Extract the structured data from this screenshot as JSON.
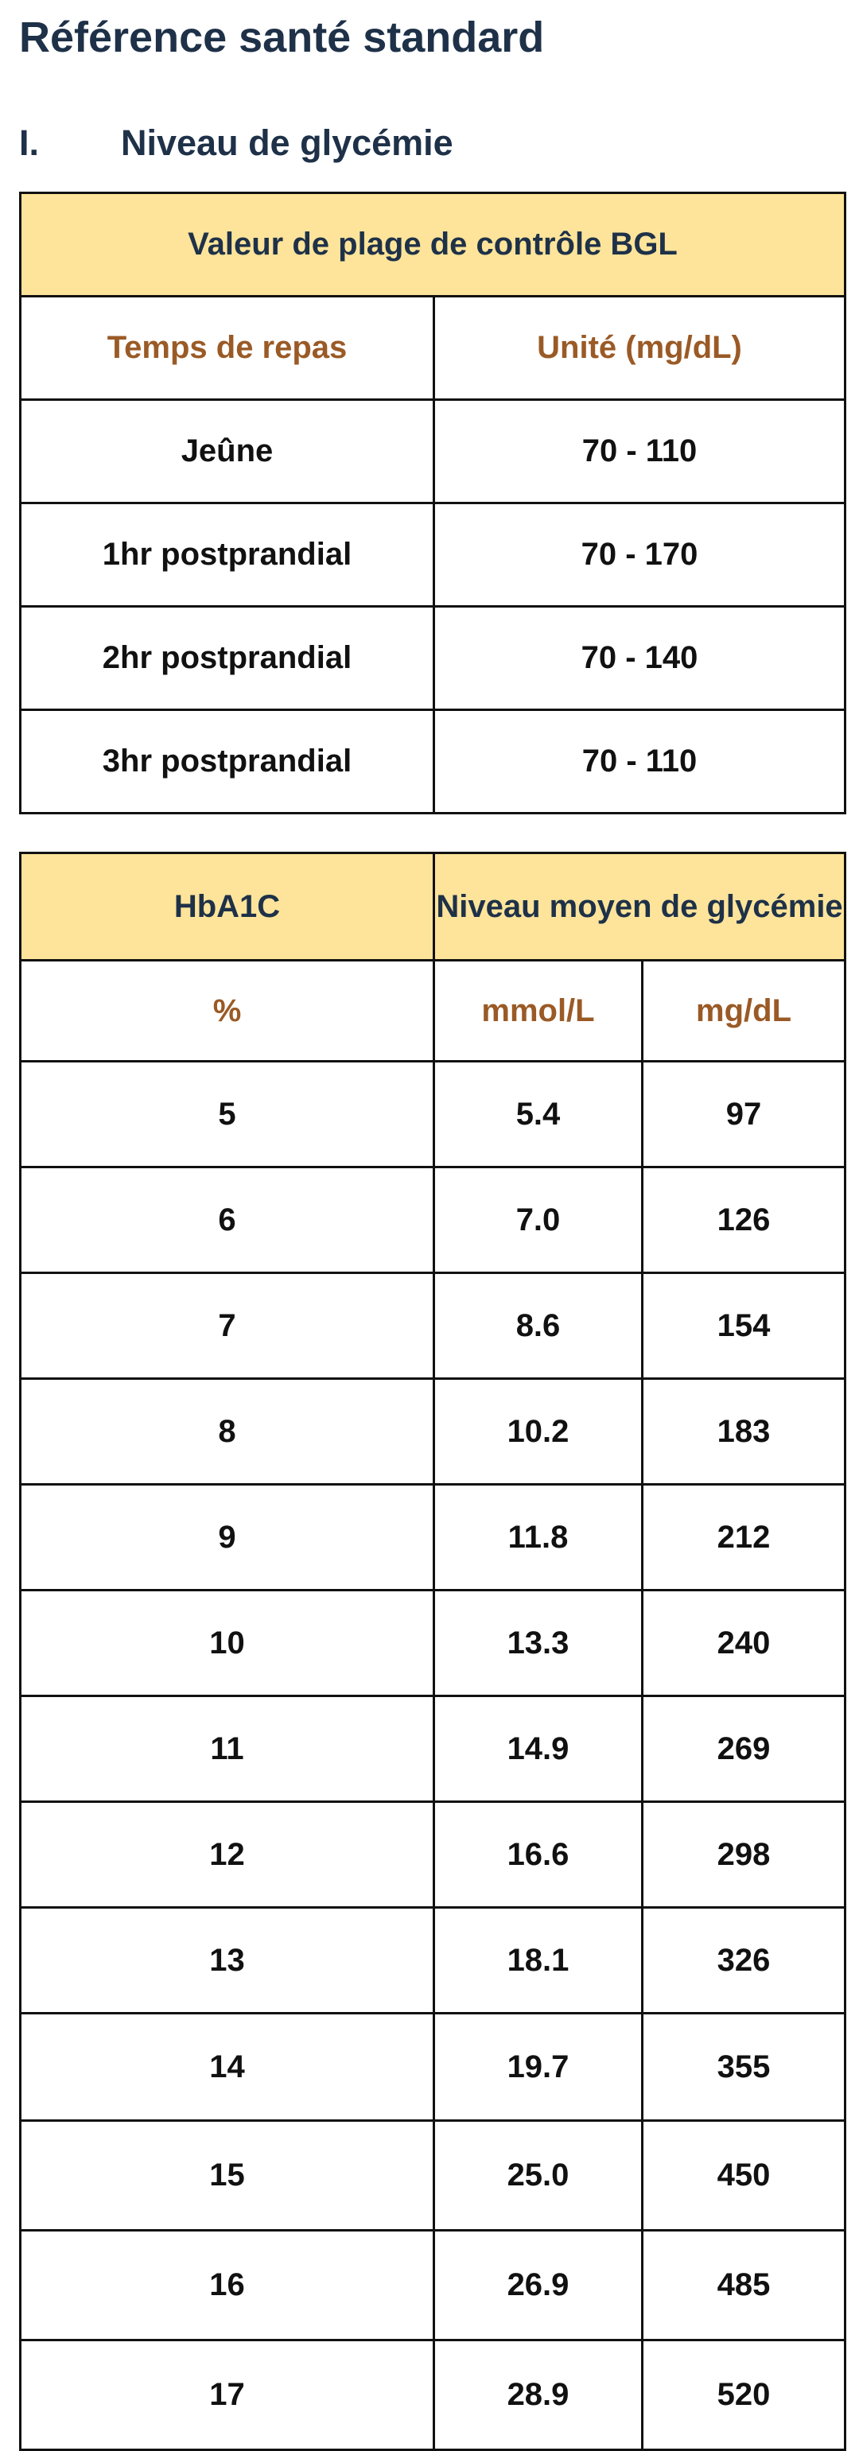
{
  "title": "Référence santé standard",
  "section": {
    "number": "I.",
    "title": "Niveau de glycémie"
  },
  "bgl_table": {
    "caption": "Valeur de plage de contrôle BGL",
    "headers": [
      "Temps de repas",
      "Unité (mg/dL)"
    ],
    "rows": [
      [
        "Jeûne",
        "70 - 110"
      ],
      [
        "1hr postprandial",
        "70 - 170"
      ],
      [
        "2hr postprandial",
        "70 - 140"
      ],
      [
        "3hr postprandial",
        "70 - 110"
      ]
    ]
  },
  "hba1c_table": {
    "header_left": "HbA1C",
    "header_right": "Niveau moyen de glycémie",
    "units": [
      "%",
      "mmol/L",
      "mg/dL"
    ],
    "rows": [
      [
        "5",
        "5.4",
        "97"
      ],
      [
        "6",
        "7.0",
        "126"
      ],
      [
        "7",
        "8.6",
        "154"
      ],
      [
        "8",
        "10.2",
        "183"
      ],
      [
        "9",
        "11.8",
        "212"
      ],
      [
        "10",
        "13.3",
        "240"
      ],
      [
        "11",
        "14.9",
        "269"
      ],
      [
        "12",
        "16.6",
        "298"
      ],
      [
        "13",
        "18.1",
        "326"
      ],
      [
        "14",
        "19.7",
        "355"
      ],
      [
        "15",
        "25.0",
        "450"
      ],
      [
        "16",
        "26.9",
        "485"
      ],
      [
        "17",
        "28.9",
        "520"
      ]
    ]
  },
  "colors": {
    "header_bg": "#fde49a",
    "heading_text": "#1e3148",
    "unit_text": "#9a5a26",
    "border": "#111111"
  }
}
